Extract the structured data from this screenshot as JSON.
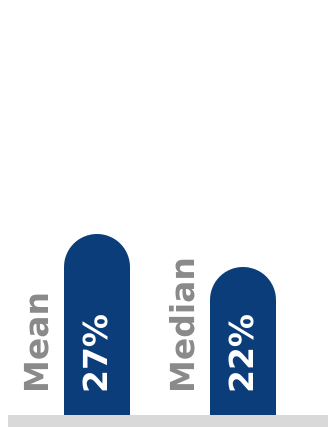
{
  "chart_data": {
    "type": "bar",
    "categories": [
      "Mean",
      "Median"
    ],
    "values": [
      27,
      22
    ],
    "value_labels": [
      "27%",
      "22%"
    ],
    "title": "",
    "xlabel": "",
    "ylabel": "",
    "ylim": [
      0,
      60
    ],
    "grid": false,
    "legend": "none",
    "bar_color": "#0b3d7a",
    "label_color": "#8a8a8a",
    "baseline_color": "#d9d9d9"
  }
}
